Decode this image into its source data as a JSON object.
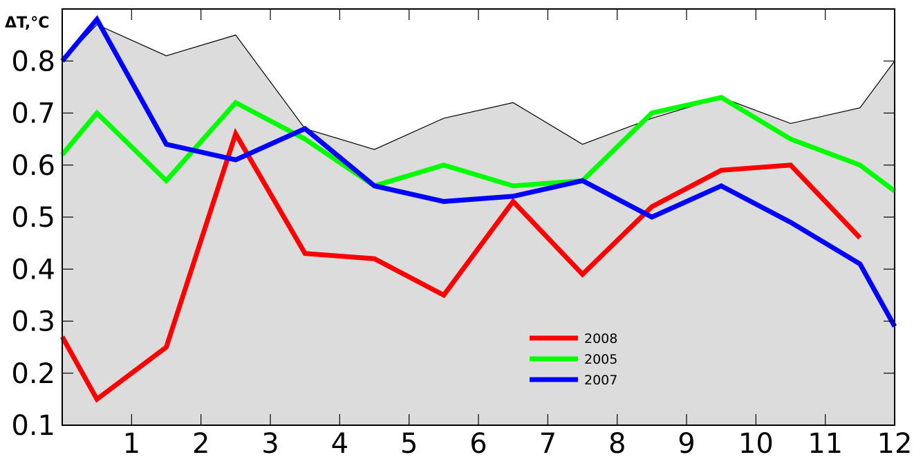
{
  "chart_data": {
    "type": "area",
    "ylabel": "ΔT,°C",
    "xlabel": "",
    "xlim": [
      0,
      12
    ],
    "ylim": [
      0.1,
      0.9
    ],
    "x_ticks": [
      1,
      2,
      3,
      4,
      5,
      6,
      7,
      8,
      9,
      10,
      11,
      12
    ],
    "x_tick_labels": [
      "1",
      "2",
      "3",
      "4",
      "5",
      "6",
      "7",
      "8",
      "9",
      "10",
      "11",
      "12"
    ],
    "y_ticks": [
      0.1,
      0.2,
      0.3,
      0.4,
      0.5,
      0.6,
      0.7,
      0.8
    ],
    "y_tick_labels": [
      "0.1",
      "0.2",
      "0.3",
      "0.4",
      "0.5",
      "0.6",
      "0.7",
      "0.8"
    ],
    "grid": false,
    "legend_position": "lower-center",
    "envelope": {
      "fill": "#dcdcdc",
      "stroke": "#000000",
      "points": [
        [
          0,
          0.8
        ],
        [
          0.5,
          0.87
        ],
        [
          1.5,
          0.81
        ],
        [
          2.5,
          0.85
        ],
        [
          3.5,
          0.67
        ],
        [
          4.5,
          0.63
        ],
        [
          5.5,
          0.69
        ],
        [
          6.5,
          0.72
        ],
        [
          7.5,
          0.64
        ],
        [
          8.5,
          0.69
        ],
        [
          9.5,
          0.73
        ],
        [
          10.5,
          0.68
        ],
        [
          11.5,
          0.71
        ],
        [
          12,
          0.8
        ]
      ]
    },
    "series": [
      {
        "name": "2008",
        "color": "#ff0000",
        "points": [
          [
            0,
            0.27
          ],
          [
            0.5,
            0.15
          ],
          [
            1.5,
            0.25
          ],
          [
            2.5,
            0.66
          ],
          [
            3.5,
            0.43
          ],
          [
            4.5,
            0.42
          ],
          [
            5.5,
            0.35
          ],
          [
            6.5,
            0.53
          ],
          [
            7.5,
            0.39
          ],
          [
            8.5,
            0.52
          ],
          [
            9.5,
            0.59
          ],
          [
            10.5,
            0.6
          ],
          [
            11.5,
            0.46
          ]
        ]
      },
      {
        "name": "2005",
        "color": "#00ff00",
        "points": [
          [
            0,
            0.62
          ],
          [
            0.5,
            0.7
          ],
          [
            1.5,
            0.57
          ],
          [
            2.5,
            0.72
          ],
          [
            3.5,
            0.65
          ],
          [
            4.5,
            0.56
          ],
          [
            5.5,
            0.6
          ],
          [
            6.5,
            0.56
          ],
          [
            7.5,
            0.57
          ],
          [
            8.5,
            0.7
          ],
          [
            9.5,
            0.73
          ],
          [
            10.5,
            0.65
          ],
          [
            11.5,
            0.6
          ],
          [
            12,
            0.55
          ]
        ]
      },
      {
        "name": "2007",
        "color": "#0000ff",
        "points": [
          [
            0,
            0.8
          ],
          [
            0.5,
            0.88
          ],
          [
            1.5,
            0.64
          ],
          [
            2.5,
            0.61
          ],
          [
            3.5,
            0.67
          ],
          [
            4.5,
            0.56
          ],
          [
            5.5,
            0.53
          ],
          [
            6.5,
            0.54
          ],
          [
            7.5,
            0.57
          ],
          [
            8.5,
            0.5
          ],
          [
            9.5,
            0.56
          ],
          [
            10.5,
            0.49
          ],
          [
            11.5,
            0.41
          ],
          [
            12,
            0.29
          ]
        ]
      }
    ]
  }
}
